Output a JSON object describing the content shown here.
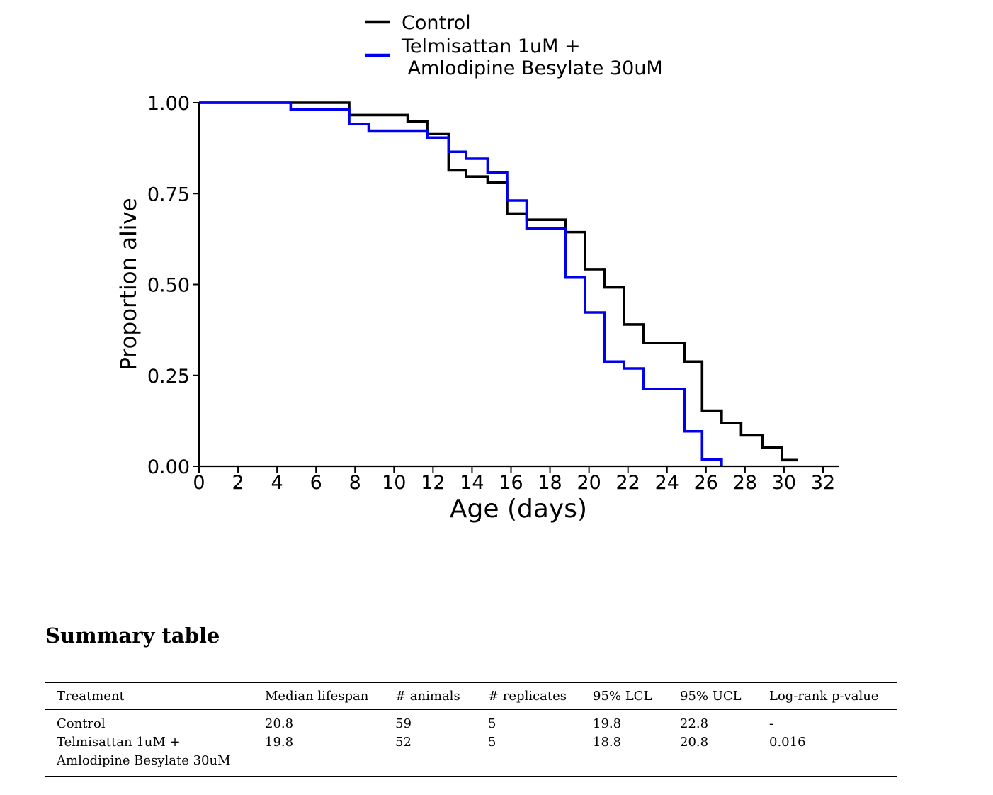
{
  "chart_data": {
    "type": "line",
    "step": true,
    "xlabel": "Age (days)",
    "ylabel": "Proportion alive",
    "xlim": [
      0,
      32
    ],
    "ylim": [
      0,
      1
    ],
    "xticks": [
      "0",
      "2",
      "4",
      "6",
      "8",
      "10",
      "12",
      "14",
      "16",
      "18",
      "20",
      "22",
      "24",
      "26",
      "28",
      "30",
      "32"
    ],
    "yticks": [
      "0.00",
      "0.25",
      "0.50",
      "0.75",
      "1.00"
    ],
    "grid": false,
    "legend": "top-center",
    "series": [
      {
        "name": "Control",
        "color": "#000000",
        "x": [
          0,
          7.7,
          10.7,
          11.7,
          12.8,
          13.7,
          14.8,
          15.8,
          16.8,
          18.8,
          19.8,
          20.8,
          21.8,
          22.8,
          24.9,
          25.8,
          26.8,
          27.8,
          28.9,
          29.9,
          30.7
        ],
        "y": [
          1.0,
          0.966,
          0.949,
          0.915,
          0.814,
          0.797,
          0.78,
          0.695,
          0.678,
          0.644,
          0.542,
          0.492,
          0.39,
          0.339,
          0.288,
          0.153,
          0.119,
          0.085,
          0.051,
          0.017,
          0.017
        ]
      },
      {
        "name": "Telmisattan 1uM +\n Amlodipine Besylate 30uM",
        "name_lines": [
          "Telmisattan 1uM +",
          " Amlodipine Besylate 30uM"
        ],
        "color": "#0000ee",
        "x": [
          0,
          4.7,
          7.7,
          8.7,
          11.7,
          12.8,
          13.7,
          14.8,
          15.8,
          16.8,
          18.8,
          19.8,
          20.8,
          21.8,
          22.8,
          24.9,
          25.8,
          26.8
        ],
        "y": [
          1.0,
          0.981,
          0.942,
          0.923,
          0.904,
          0.865,
          0.846,
          0.808,
          0.731,
          0.654,
          0.519,
          0.423,
          0.288,
          0.269,
          0.212,
          0.096,
          0.019,
          0.0
        ]
      }
    ]
  },
  "summary": {
    "title": "Summary table",
    "columns": [
      "Treatment",
      "Median lifespan",
      "# animals",
      "# replicates",
      "95% LCL",
      "95% UCL",
      "Log-rank p-value"
    ],
    "rows": [
      {
        "treatment_lines": [
          "Control"
        ],
        "median": "20.8",
        "animals": "59",
        "replicates": "5",
        "lcl": "19.8",
        "ucl": "22.8",
        "p": "-"
      },
      {
        "treatment_lines": [
          "Telmisattan 1uM +",
          "Amlodipine Besylate 30uM"
        ],
        "median": "19.8",
        "animals": "52",
        "replicates": "5",
        "lcl": "18.8",
        "ucl": "20.8",
        "p": "0.016"
      }
    ]
  }
}
